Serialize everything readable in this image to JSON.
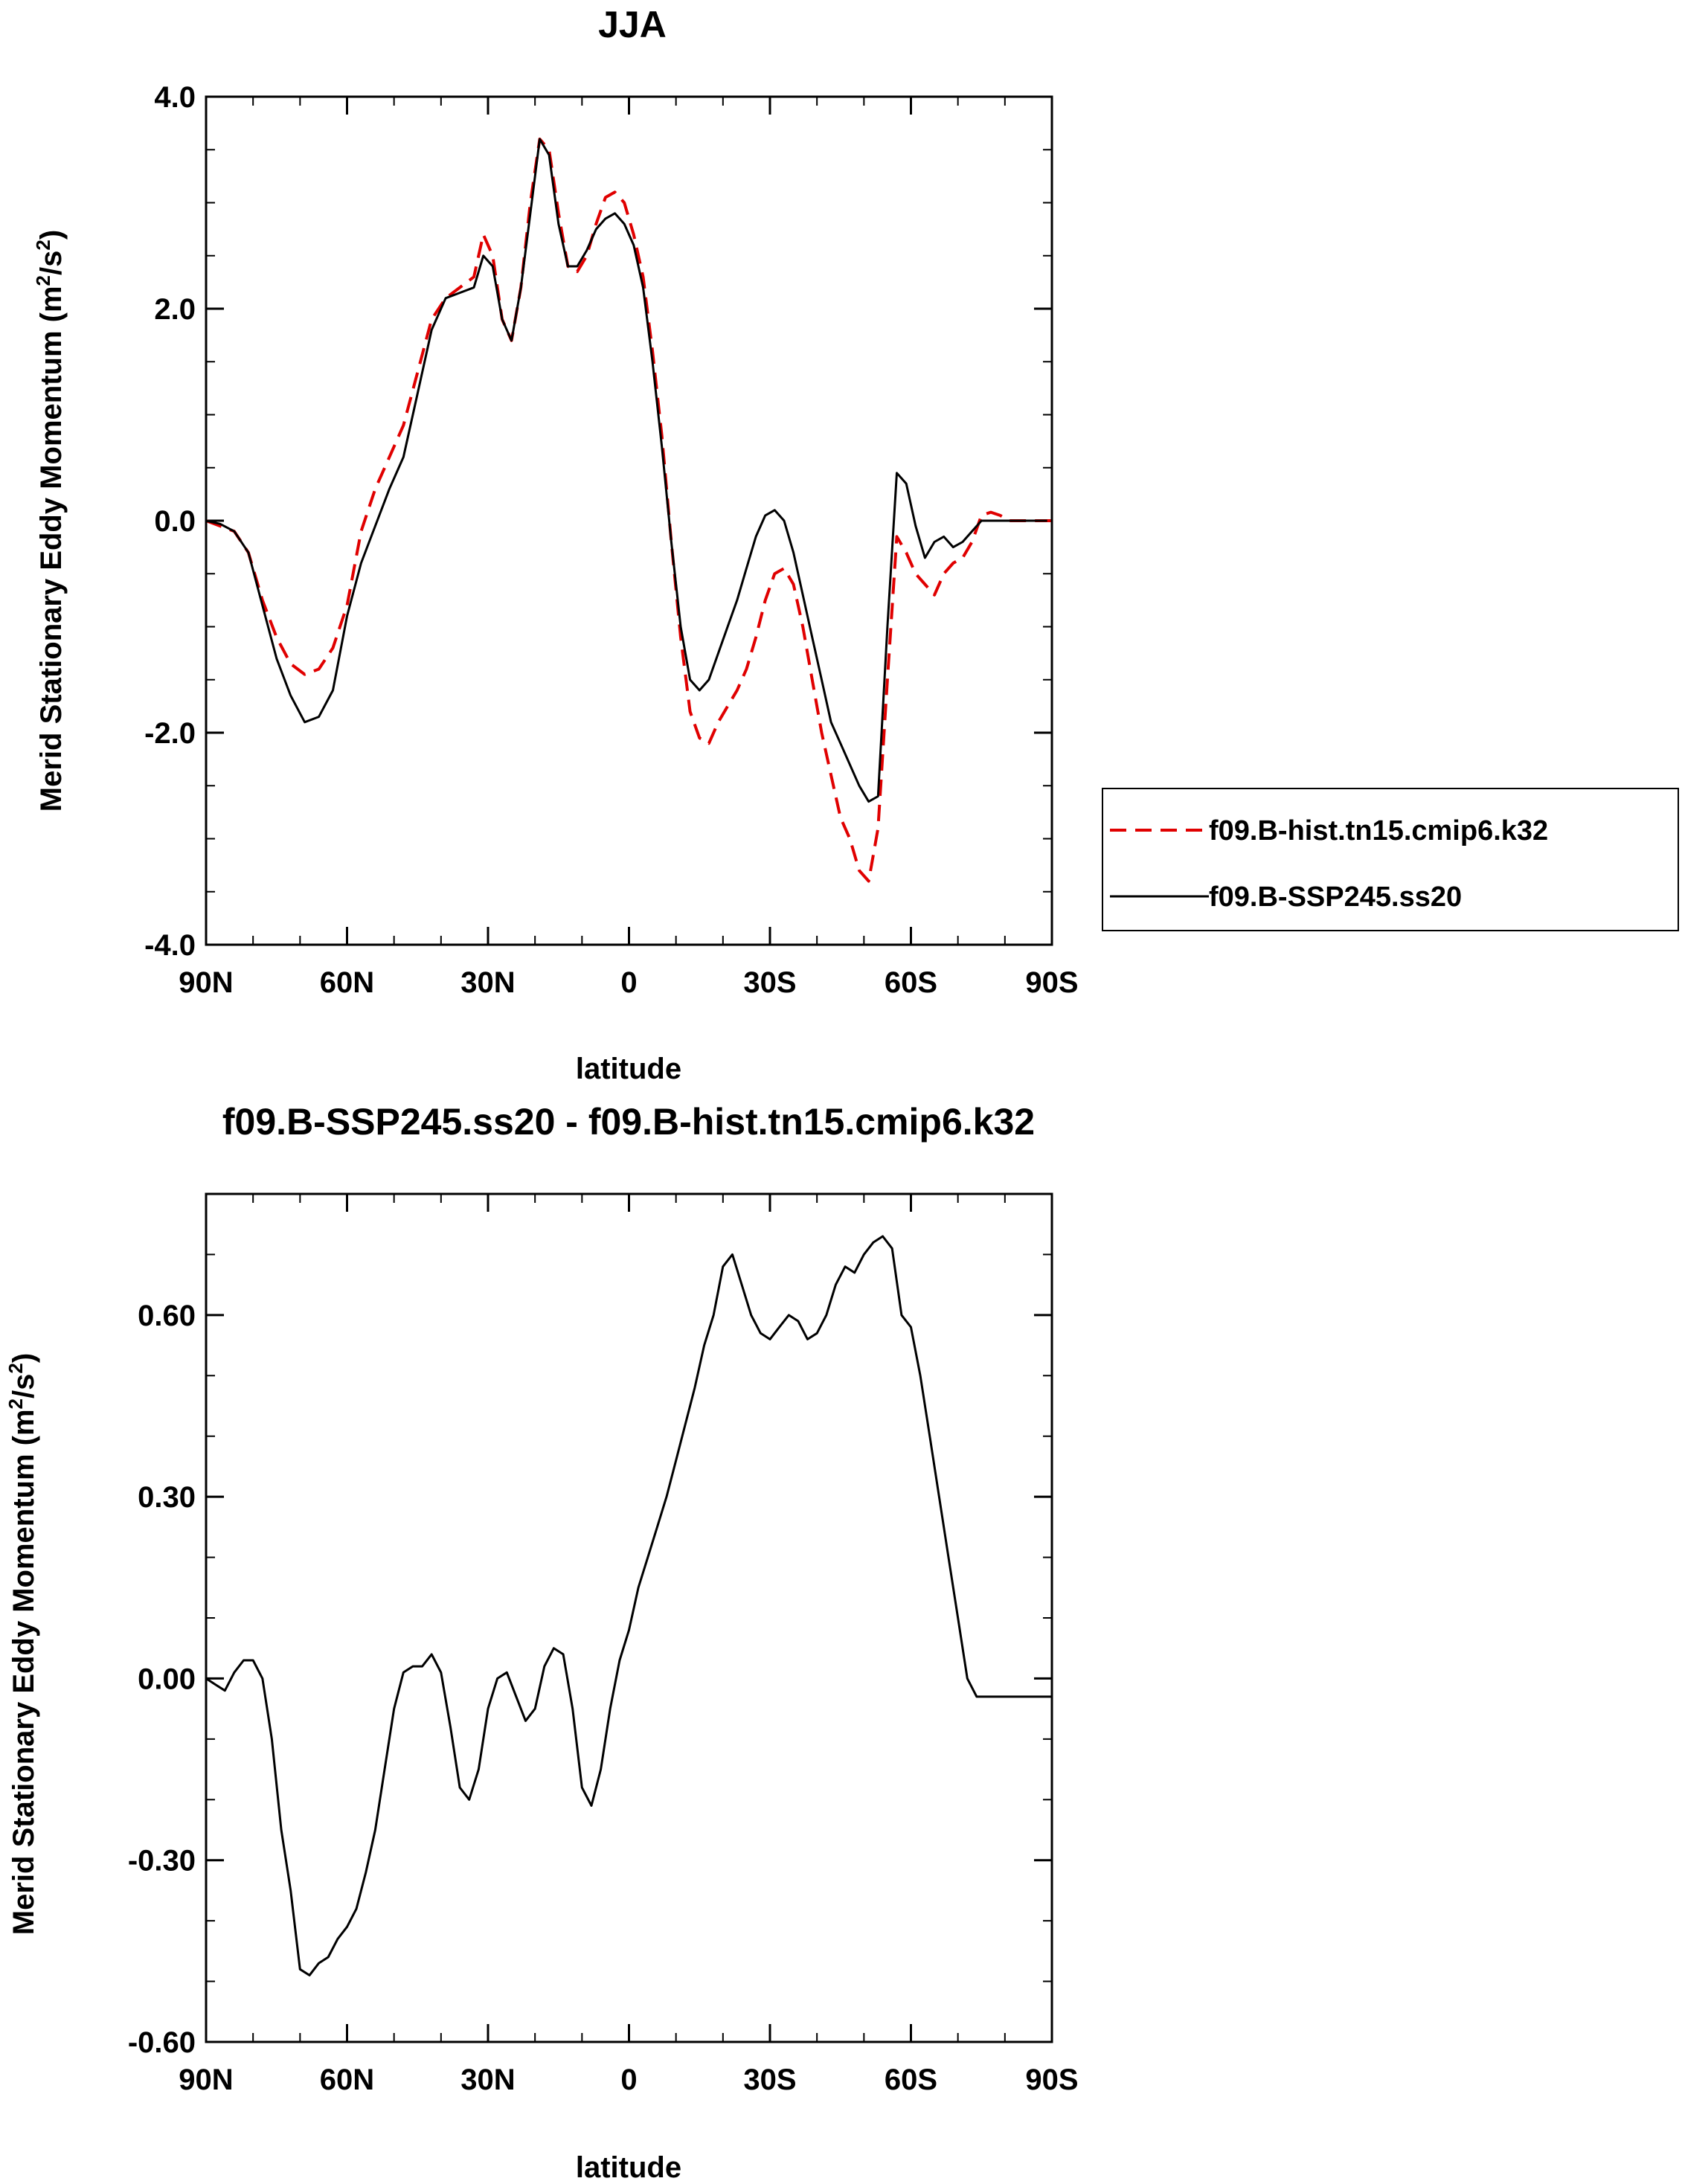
{
  "chart_data": [
    {
      "type": "line",
      "title": "JJA",
      "xlabel": "latitude",
      "ylabel": "Merid Stationary Eddy Momentum (m²/s²)",
      "ylabel_main": "Merid Stationary Eddy Momentum (m",
      "ylabel_sup1": "2",
      "ylabel_mid": "/s",
      "ylabel_sup2": "2",
      "ylabel_end": ")",
      "xlim": [
        90,
        -90
      ],
      "ylim": [
        -4,
        4
      ],
      "xticks": [
        90,
        60,
        30,
        0,
        -30,
        -60,
        -90
      ],
      "xtick_labels": [
        "90N",
        "60N",
        "30N",
        "0",
        "30S",
        "60S",
        "90S"
      ],
      "yticks": [
        -4,
        -2,
        0,
        2,
        4
      ],
      "ytick_labels": [
        "-4.0",
        "-2.0",
        "0.0",
        "2.0",
        "4.0"
      ],
      "legend_position": "outside-right",
      "series": [
        {
          "name": "f09.B-hist.tn15.cmip6.k32",
          "color": "#e00000",
          "dash": "dashed",
          "x": [
            90,
            87,
            84,
            81,
            78,
            75,
            72,
            69,
            66,
            63,
            60,
            57,
            54,
            51,
            48,
            45,
            42,
            39,
            36,
            33,
            31,
            29,
            27,
            25,
            23,
            21,
            19,
            17,
            15,
            13,
            11,
            9,
            7,
            5,
            3,
            1,
            -1,
            -3,
            -5,
            -7,
            -9,
            -11,
            -13,
            -15,
            -17,
            -19,
            -21,
            -23,
            -25,
            -27,
            -29,
            -31,
            -33,
            -35,
            -37,
            -39,
            -41,
            -43,
            -45,
            -47,
            -49,
            -51,
            -53,
            -55,
            -57,
            -59,
            -61,
            -63,
            -65,
            -67,
            -69,
            -71,
            -73,
            -75,
            -77,
            -79,
            -81,
            -83,
            -85,
            -87,
            -89,
            -90
          ],
          "y": [
            0.0,
            -0.05,
            -0.1,
            -0.3,
            -0.75,
            -1.1,
            -1.35,
            -1.45,
            -1.4,
            -1.2,
            -0.8,
            -0.1,
            0.3,
            0.6,
            0.9,
            1.4,
            1.9,
            2.1,
            2.2,
            2.3,
            2.7,
            2.5,
            1.9,
            1.7,
            2.2,
            3.0,
            3.6,
            3.5,
            2.9,
            2.4,
            2.35,
            2.5,
            2.8,
            3.05,
            3.1,
            3.0,
            2.7,
            2.3,
            1.6,
            0.8,
            -0.2,
            -1.1,
            -1.8,
            -2.05,
            -2.1,
            -1.9,
            -1.75,
            -1.6,
            -1.4,
            -1.1,
            -0.75,
            -0.5,
            -0.45,
            -0.6,
            -1.0,
            -1.5,
            -2.0,
            -2.4,
            -2.8,
            -3.0,
            -3.3,
            -3.4,
            -2.9,
            -1.5,
            -0.15,
            -0.3,
            -0.5,
            -0.6,
            -0.7,
            -0.5,
            -0.4,
            -0.35,
            -0.2,
            0.05,
            0.08,
            0.05,
            0.0,
            0.0,
            0.0,
            0.0,
            0.0,
            0.0
          ]
        },
        {
          "name": "f09.B-SSP245.ss20",
          "color": "#000000",
          "dash": "solid",
          "x": [
            90,
            87,
            84,
            81,
            78,
            75,
            72,
            69,
            66,
            63,
            60,
            57,
            54,
            51,
            48,
            45,
            42,
            39,
            36,
            33,
            31,
            29,
            27,
            25,
            23,
            21,
            19,
            17,
            15,
            13,
            11,
            9,
            7,
            5,
            3,
            1,
            -1,
            -3,
            -5,
            -7,
            -9,
            -11,
            -13,
            -15,
            -17,
            -19,
            -21,
            -23,
            -25,
            -27,
            -29,
            -31,
            -33,
            -35,
            -37,
            -39,
            -41,
            -43,
            -45,
            -47,
            -49,
            -51,
            -53,
            -55,
            -57,
            -59,
            -61,
            -63,
            -65,
            -67,
            -69,
            -71,
            -73,
            -75,
            -77,
            -79,
            -81,
            -83,
            -85,
            -87,
            -89
          ],
          "y": [
            0.0,
            -0.03,
            -0.1,
            -0.3,
            -0.8,
            -1.3,
            -1.65,
            -1.9,
            -1.85,
            -1.6,
            -0.9,
            -0.4,
            -0.05,
            0.3,
            0.6,
            1.2,
            1.8,
            2.1,
            2.15,
            2.2,
            2.5,
            2.4,
            1.9,
            1.7,
            2.2,
            2.9,
            3.6,
            3.45,
            2.8,
            2.4,
            2.4,
            2.55,
            2.75,
            2.85,
            2.9,
            2.8,
            2.6,
            2.2,
            1.5,
            0.7,
            -0.2,
            -1.0,
            -1.5,
            -1.6,
            -1.5,
            -1.25,
            -1.0,
            -0.75,
            -0.45,
            -0.15,
            0.05,
            0.1,
            0.0,
            -0.3,
            -0.7,
            -1.1,
            -1.5,
            -1.9,
            -2.1,
            -2.3,
            -2.5,
            -2.65,
            -2.6,
            -1.0,
            0.45,
            0.35,
            -0.05,
            -0.35,
            -0.2,
            -0.15,
            -0.25,
            -0.2,
            -0.1,
            0.0,
            0.0,
            0.0,
            0.0,
            0.0,
            0.0,
            0.0,
            0.0
          ]
        }
      ],
      "legend": [
        {
          "label": "f09.B-hist.tn15.cmip6.k32",
          "color": "#e00000",
          "dash": "dashed"
        },
        {
          "label": "f09.B-SSP245.ss20",
          "color": "#000000",
          "dash": "solid"
        }
      ]
    },
    {
      "type": "line",
      "title": "f09.B-SSP245.ss20 - f09.B-hist.tn15.cmip6.k32",
      "xlabel": "latitude",
      "ylabel": "Merid Stationary Eddy Momentum (m²/s²)",
      "ylabel_main": "Merid Stationary Eddy Momentum (m",
      "ylabel_sup1": "2",
      "ylabel_mid": "/s",
      "ylabel_sup2": "2",
      "ylabel_end": ")",
      "xlim": [
        90,
        -90
      ],
      "ylim": [
        -0.6,
        0.8
      ],
      "xticks": [
        90,
        60,
        30,
        0,
        -30,
        -60,
        -90
      ],
      "xtick_labels": [
        "90N",
        "60N",
        "30N",
        "0",
        "30S",
        "60S",
        "90S"
      ],
      "yticks": [
        -0.6,
        -0.3,
        0.0,
        0.3,
        0.6
      ],
      "ytick_labels": [
        "-0.60",
        "-0.30",
        "0.00",
        "0.30",
        "0.60"
      ],
      "series": [
        {
          "color": "#000000",
          "dash": "solid",
          "x": [
            90,
            88,
            86,
            84,
            82,
            80,
            78,
            76,
            74,
            72,
            70,
            68,
            66,
            64,
            62,
            60,
            58,
            56,
            54,
            52,
            50,
            48,
            46,
            44,
            42,
            40,
            38,
            36,
            34,
            32,
            30,
            28,
            26,
            24,
            22,
            20,
            18,
            16,
            14,
            12,
            10,
            8,
            6,
            4,
            2,
            0,
            -2,
            -4,
            -6,
            -8,
            -10,
            -12,
            -14,
            -16,
            -18,
            -20,
            -22,
            -24,
            -26,
            -28,
            -30,
            -32,
            -34,
            -36,
            -38,
            -40,
            -42,
            -44,
            -46,
            -48,
            -50,
            -52,
            -54,
            -56,
            -58,
            -60,
            -62,
            -64,
            -66,
            -68,
            -70,
            -72,
            -74,
            -76,
            -78,
            -80,
            -82,
            -84,
            -86,
            -88,
            -90
          ],
          "y": [
            0.0,
            -0.01,
            -0.02,
            0.01,
            0.03,
            0.03,
            0.0,
            -0.1,
            -0.25,
            -0.35,
            -0.48,
            -0.49,
            -0.47,
            -0.46,
            -0.43,
            -0.41,
            -0.38,
            -0.32,
            -0.25,
            -0.15,
            -0.05,
            0.01,
            0.02,
            0.02,
            0.04,
            0.01,
            -0.08,
            -0.18,
            -0.2,
            -0.15,
            -0.05,
            0.0,
            0.01,
            -0.03,
            -0.07,
            -0.05,
            0.02,
            0.05,
            0.04,
            -0.05,
            -0.18,
            -0.21,
            -0.15,
            -0.05,
            0.03,
            0.08,
            0.15,
            0.2,
            0.25,
            0.3,
            0.36,
            0.42,
            0.48,
            0.55,
            0.6,
            0.68,
            0.7,
            0.65,
            0.6,
            0.57,
            0.56,
            0.58,
            0.6,
            0.59,
            0.56,
            0.57,
            0.6,
            0.65,
            0.68,
            0.67,
            0.7,
            0.72,
            0.73,
            0.71,
            0.6,
            0.58,
            0.5,
            0.4,
            0.3,
            0.2,
            0.1,
            0.0,
            -0.03,
            -0.03,
            -0.03,
            -0.03,
            -0.03,
            -0.03,
            -0.03,
            -0.03,
            -0.03
          ]
        }
      ]
    }
  ]
}
